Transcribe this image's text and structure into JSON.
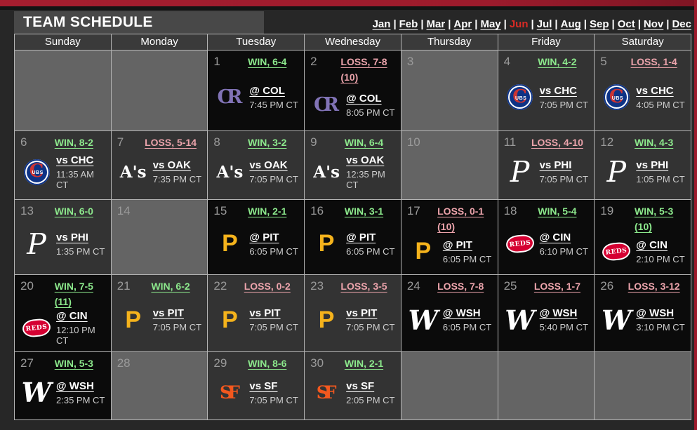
{
  "header": {
    "title": "TEAM SCHEDULE"
  },
  "months_separator": "|",
  "months": [
    {
      "label": "Jan"
    },
    {
      "label": "Feb"
    },
    {
      "label": "Mar"
    },
    {
      "label": "Apr"
    },
    {
      "label": "May"
    },
    {
      "label": "Jun",
      "active": true
    },
    {
      "label": "Jul"
    },
    {
      "label": "Aug"
    },
    {
      "label": "Sep"
    },
    {
      "label": "Oct"
    },
    {
      "label": "Nov"
    },
    {
      "label": "Dec"
    }
  ],
  "day_headers": [
    "Sunday",
    "Monday",
    "Tuesday",
    "Wednesday",
    "Thursday",
    "Friday",
    "Saturday"
  ],
  "logos": {
    "COL": "CR",
    "CHC_main": "C",
    "CHC_sub": "UBS",
    "OAK": "A's",
    "PHI": "P",
    "PIT": "P",
    "CIN": "REDS",
    "WSH": "W",
    "SF": "SF"
  },
  "accent_colors": {
    "win": "#8ce88c",
    "loss": "#eba3ab",
    "active_month": "#d92b25",
    "top_bar": "#9c1b2c"
  },
  "cells": [
    {
      "day": ""
    },
    {
      "day": ""
    },
    {
      "day": "1",
      "result": "WIN, 6-4",
      "extra": "",
      "opponent": "@ COL",
      "time": "7:45 PM CT"
    },
    {
      "day": "2",
      "result": "LOSS, 7-8",
      "extra": "(10)",
      "opponent": "@ COL",
      "time": "8:05 PM CT"
    },
    {
      "day": "3"
    },
    {
      "day": "4",
      "result": "WIN, 4-2",
      "extra": "",
      "opponent": "vs CHC",
      "time": "7:05 PM CT"
    },
    {
      "day": "5",
      "result": "LOSS, 1-4",
      "extra": "",
      "opponent": "vs CHC",
      "time": "4:05 PM CT"
    },
    {
      "day": "6",
      "result": "WIN, 8-2",
      "extra": "",
      "opponent": "vs CHC",
      "time": "11:35 AM CT"
    },
    {
      "day": "7",
      "result": "LOSS, 5-14",
      "extra": "",
      "opponent": "vs OAK",
      "time": "7:35 PM CT"
    },
    {
      "day": "8",
      "result": "WIN, 3-2",
      "extra": "",
      "opponent": "vs OAK",
      "time": "7:05 PM CT"
    },
    {
      "day": "9",
      "result": "WIN, 6-4",
      "extra": "",
      "opponent": "vs OAK",
      "time": "12:35 PM CT"
    },
    {
      "day": "10"
    },
    {
      "day": "11",
      "result": "LOSS, 4-10",
      "extra": "",
      "opponent": "vs PHI",
      "time": "7:05 PM CT"
    },
    {
      "day": "12",
      "result": "WIN, 4-3",
      "extra": "",
      "opponent": "vs PHI",
      "time": "1:05 PM CT"
    },
    {
      "day": "13",
      "result": "WIN, 6-0",
      "extra": "",
      "opponent": "vs PHI",
      "time": "1:35 PM CT"
    },
    {
      "day": "14"
    },
    {
      "day": "15",
      "result": "WIN, 2-1",
      "extra": "",
      "opponent": "@ PIT",
      "time": "6:05 PM CT"
    },
    {
      "day": "16",
      "result": "WIN, 3-1",
      "extra": "",
      "opponent": "@ PIT",
      "time": "6:05 PM CT"
    },
    {
      "day": "17",
      "result": "LOSS, 0-1",
      "extra": "(10)",
      "opponent": "@ PIT",
      "time": "6:05 PM CT"
    },
    {
      "day": "18",
      "result": "WIN, 5-4",
      "extra": "",
      "opponent": "@ CIN",
      "time": "6:10 PM CT"
    },
    {
      "day": "19",
      "result": "WIN, 5-3",
      "extra": "(10)",
      "opponent": "@ CIN",
      "time": "2:10 PM CT"
    },
    {
      "day": "20",
      "result": "WIN, 7-5",
      "extra": "(11)",
      "opponent": "@ CIN",
      "time": "12:10 PM CT"
    },
    {
      "day": "21",
      "result": "WIN, 6-2",
      "extra": "",
      "opponent": "vs PIT",
      "time": "7:05 PM CT"
    },
    {
      "day": "22",
      "result": "LOSS, 0-2",
      "extra": "",
      "opponent": "vs PIT",
      "time": "7:05 PM CT"
    },
    {
      "day": "23",
      "result": "LOSS, 3-5",
      "extra": "",
      "opponent": "vs PIT",
      "time": "7:05 PM CT"
    },
    {
      "day": "24",
      "result": "LOSS, 7-8",
      "extra": "",
      "opponent": "@ WSH",
      "time": "6:05 PM CT"
    },
    {
      "day": "25",
      "result": "LOSS, 1-7",
      "extra": "",
      "opponent": "@ WSH",
      "time": "5:40 PM CT"
    },
    {
      "day": "26",
      "result": "LOSS, 3-12",
      "extra": "",
      "opponent": "@ WSH",
      "time": "3:10 PM CT"
    },
    {
      "day": "27",
      "result": "WIN, 5-3",
      "extra": "",
      "opponent": "@ WSH",
      "time": "2:35 PM CT"
    },
    {
      "day": "28"
    },
    {
      "day": "29",
      "result": "WIN, 8-6",
      "extra": "",
      "opponent": "vs SF",
      "time": "7:05 PM CT"
    },
    {
      "day": "30",
      "result": "WIN, 2-1",
      "extra": "",
      "opponent": "vs SF",
      "time": "2:05 PM CT"
    },
    {
      "day": ""
    },
    {
      "day": ""
    },
    {
      "day": ""
    }
  ]
}
